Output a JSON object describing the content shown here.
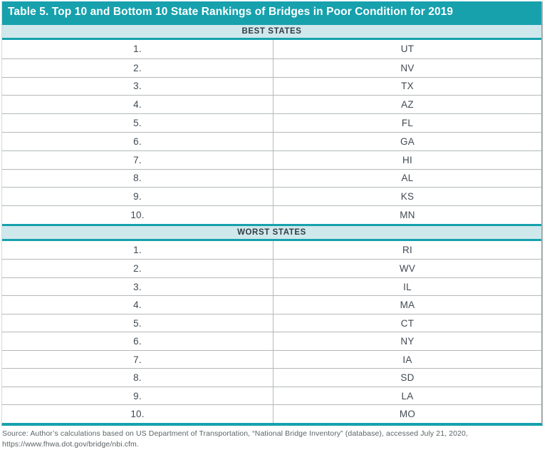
{
  "table": {
    "title": "Table 5. Top 10 and Bottom 10 State Rankings of Bridges in Poor Condition for 2019",
    "sections": [
      {
        "label": "BEST STATES",
        "rows": [
          {
            "rank": "1.",
            "state": "UT"
          },
          {
            "rank": "2.",
            "state": "NV"
          },
          {
            "rank": "3.",
            "state": "TX"
          },
          {
            "rank": "4.",
            "state": "AZ"
          },
          {
            "rank": "5.",
            "state": "FL"
          },
          {
            "rank": "6.",
            "state": "GA"
          },
          {
            "rank": "7.",
            "state": "HI"
          },
          {
            "rank": "8.",
            "state": "AL"
          },
          {
            "rank": "9.",
            "state": "KS"
          },
          {
            "rank": "10.",
            "state": "MN"
          }
        ]
      },
      {
        "label": "WORST STATES",
        "rows": [
          {
            "rank": "1.",
            "state": "RI"
          },
          {
            "rank": "2.",
            "state": "WV"
          },
          {
            "rank": "3.",
            "state": "IL"
          },
          {
            "rank": "4.",
            "state": "MA"
          },
          {
            "rank": "5.",
            "state": "CT"
          },
          {
            "rank": "6.",
            "state": "NY"
          },
          {
            "rank": "7.",
            "state": "IA"
          },
          {
            "rank": "8.",
            "state": "SD"
          },
          {
            "rank": "9.",
            "state": "LA"
          },
          {
            "rank": "10.",
            "state": "MO"
          }
        ]
      }
    ]
  },
  "source": {
    "line1": "Source: Author’s calculations based on US Department of Transportation, “National Bridge Inventory” (database), accessed July 21, 2020,",
    "line2": "https://www.fhwa.dot.gov/bridge/nbi.cfm."
  },
  "colors": {
    "teal": "#16a1ad",
    "light_teal": "#cfe8ec",
    "row_border": "#b4b8b9",
    "cell_text": "#414a52",
    "header_text": "#333c44",
    "source_text": "#5d6367"
  }
}
